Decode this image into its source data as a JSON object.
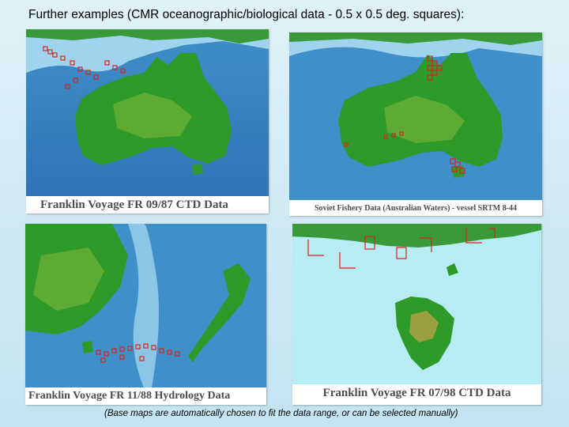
{
  "slide": {
    "title": "Further examples (CMR oceanographic/biological data - 0.5 x 0.5 deg. squares):",
    "footnote": "(Base maps are automatically chosen to fit the data range, or can be selected manually)"
  },
  "maps": [
    {
      "caption": "Franklin Voyage FR 09/87 CTD Data"
    },
    {
      "caption": "Soviet Fishery Data (Australian Waters)  - vessel SRTM 8-44"
    },
    {
      "caption": "Franklin Voyage FR 11/88 Hydrology Data"
    },
    {
      "caption": "Franklin Voyage FR 07/98 CTD Data"
    }
  ],
  "colors": {
    "ocean_deep": "#3f8fc9",
    "ocean_shelf": "#9fd3ee",
    "land_low": "#2e9a2a",
    "land_high": "#d9a23a",
    "data_squares": "#d8261e",
    "plain_ocean": "#b7ecf3"
  }
}
